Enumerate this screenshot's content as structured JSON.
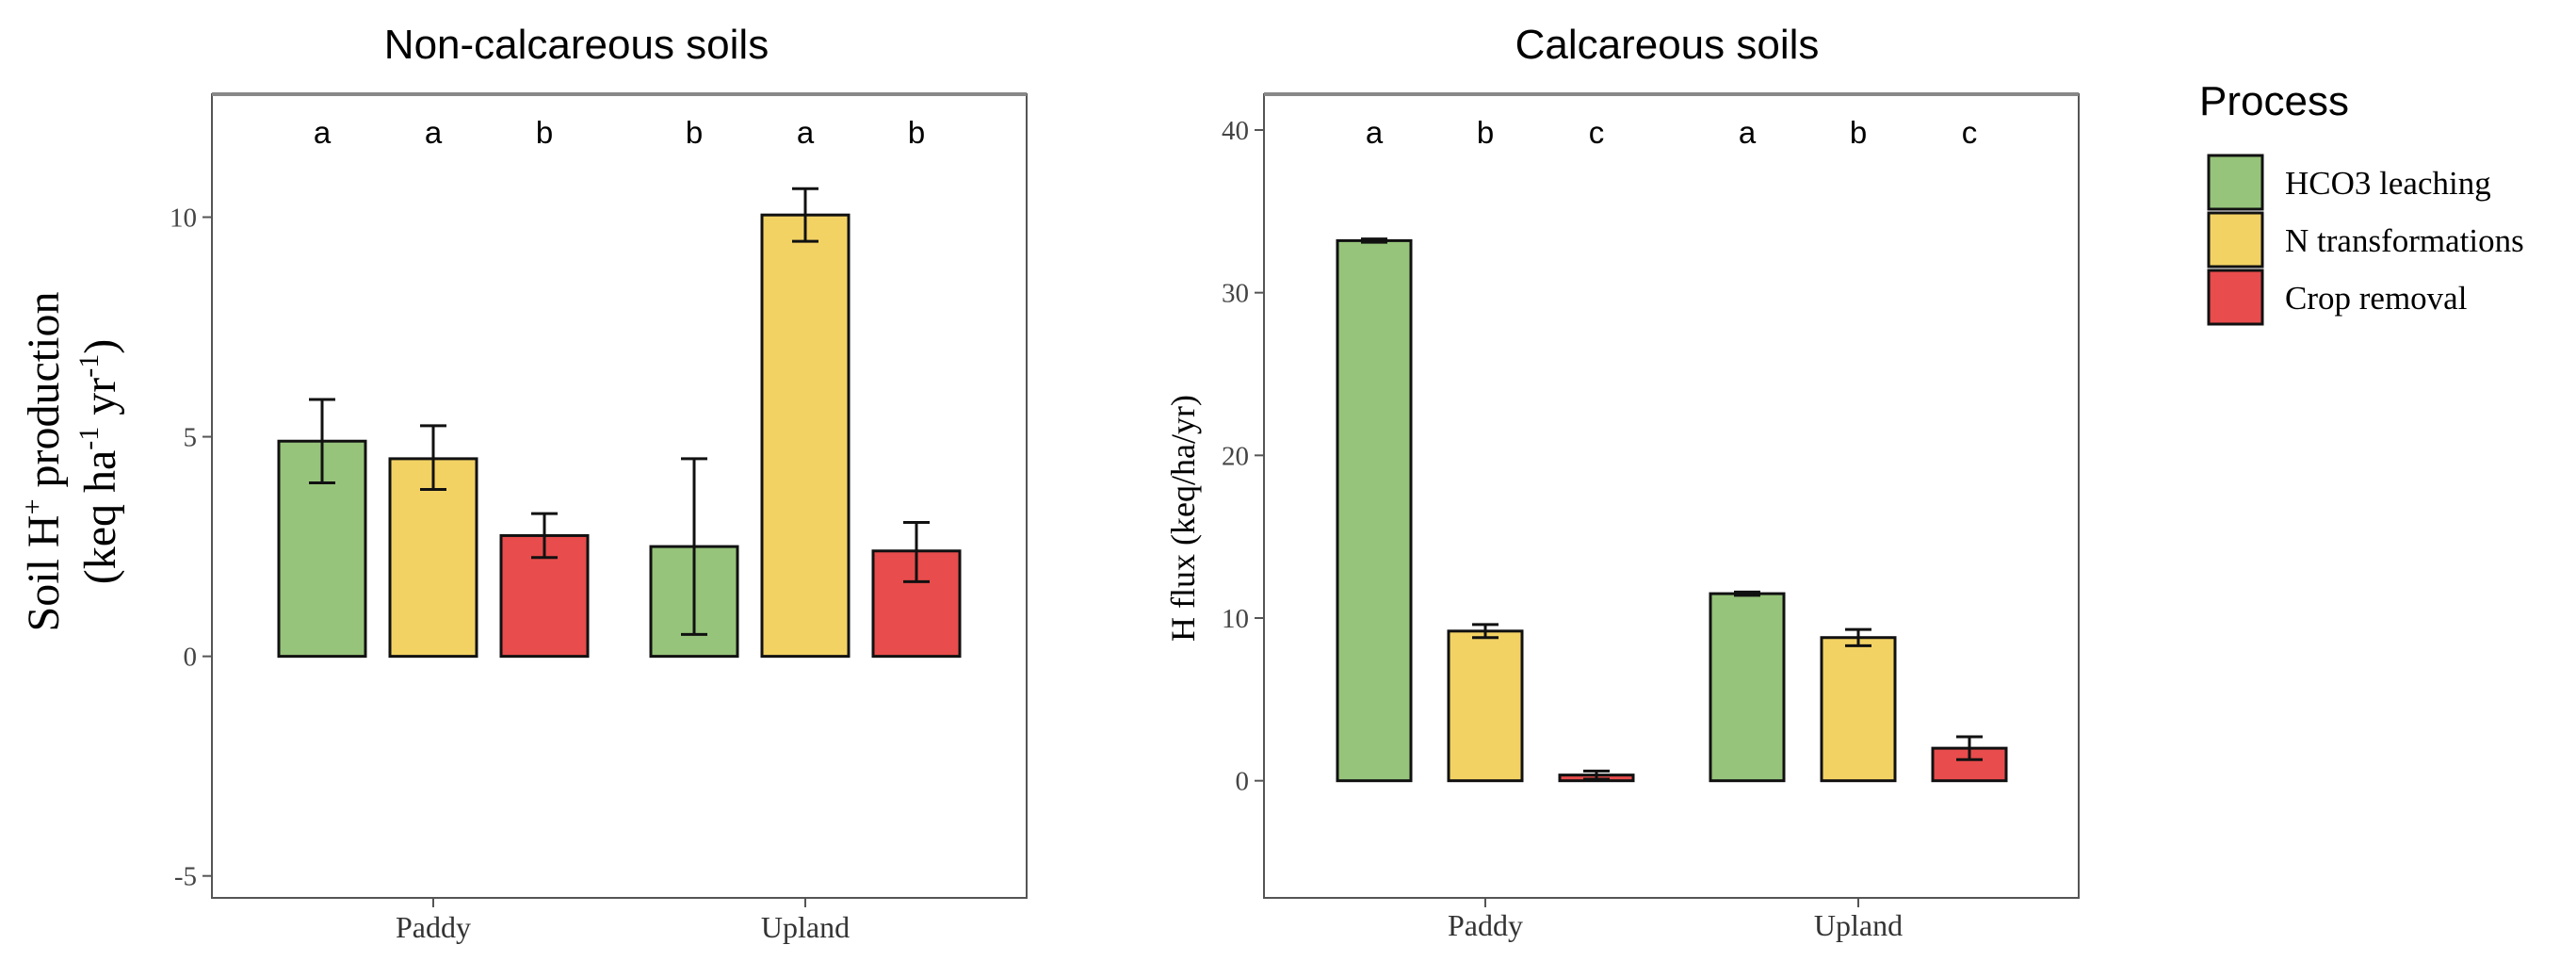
{
  "chart_data": [
    {
      "type": "bar",
      "title": "Non-calcareous soils",
      "xlabel": "",
      "ylabel": "Soil H+ production (keq ha-1 yr-1)",
      "ylabel_parts": {
        "line1_a": "Soil H",
        "line1_sup": "+",
        "line1_b": " production",
        "line2_a": "(keq ha",
        "line2_sup1": "-1",
        "line2_b": " yr",
        "line2_sup2": "-1",
        "line2_c": ")"
      },
      "ylim": [
        -5.5,
        12.8
      ],
      "yticks": [
        -5,
        0,
        5,
        10
      ],
      "ytick_labels": [
        "-5",
        "0",
        "5",
        "10"
      ],
      "categories": [
        "Paddy",
        "Upland"
      ],
      "series": [
        {
          "name": "HCO3 leaching",
          "color": "#96c47a",
          "values": [
            4.9,
            2.5
          ],
          "err_low": [
            3.95,
            0.5
          ],
          "err_high": [
            5.85,
            4.5
          ],
          "letters": [
            "a",
            "b"
          ]
        },
        {
          "name": "N transformations",
          "color": "#f3d264",
          "values": [
            4.5,
            10.05
          ],
          "err_low": [
            3.8,
            9.45
          ],
          "err_high": [
            5.25,
            10.65
          ],
          "letters": [
            "a",
            "a"
          ]
        },
        {
          "name": "Crop removal",
          "color": "#e84c4c",
          "values": [
            2.75,
            2.4
          ],
          "err_low": [
            2.25,
            1.7
          ],
          "err_high": [
            3.25,
            3.05
          ],
          "letters": [
            "b",
            "b"
          ]
        }
      ],
      "grid": false
    },
    {
      "type": "bar",
      "title": "Calcareous soils",
      "xlabel": "",
      "ylabel": "H flux (keq/ha/yr)",
      "ylim": [
        -7.2,
        42.2
      ],
      "yticks": [
        0,
        10,
        20,
        30,
        40
      ],
      "ytick_labels": [
        "0",
        "10",
        "20",
        "30",
        "40"
      ],
      "categories": [
        "Paddy",
        "Upland"
      ],
      "series": [
        {
          "name": "HCO3 leaching",
          "color": "#96c47a",
          "values": [
            33.2,
            11.5
          ],
          "err_low": [
            33.1,
            11.4
          ],
          "err_high": [
            33.3,
            11.6
          ],
          "letters": [
            "a",
            "a"
          ]
        },
        {
          "name": "N transformations",
          "color": "#f3d264",
          "values": [
            9.2,
            8.8
          ],
          "err_low": [
            8.8,
            8.3
          ],
          "err_high": [
            9.6,
            9.3
          ],
          "letters": [
            "b",
            "b"
          ]
        },
        {
          "name": "Crop removal",
          "color": "#e84c4c",
          "values": [
            0.35,
            2.0
          ],
          "err_low": [
            0.1,
            1.3
          ],
          "err_high": [
            0.6,
            2.7
          ],
          "letters": [
            "c",
            "c"
          ]
        }
      ],
      "grid": false
    }
  ],
  "legend": {
    "title": "Process",
    "placement": "right",
    "items": [
      {
        "label": "HCO3 leaching",
        "color": "#96c47a"
      },
      {
        "label": "N transformations",
        "color": "#f3d264"
      },
      {
        "label": "Crop removal",
        "color": "#e84c4c"
      }
    ]
  }
}
